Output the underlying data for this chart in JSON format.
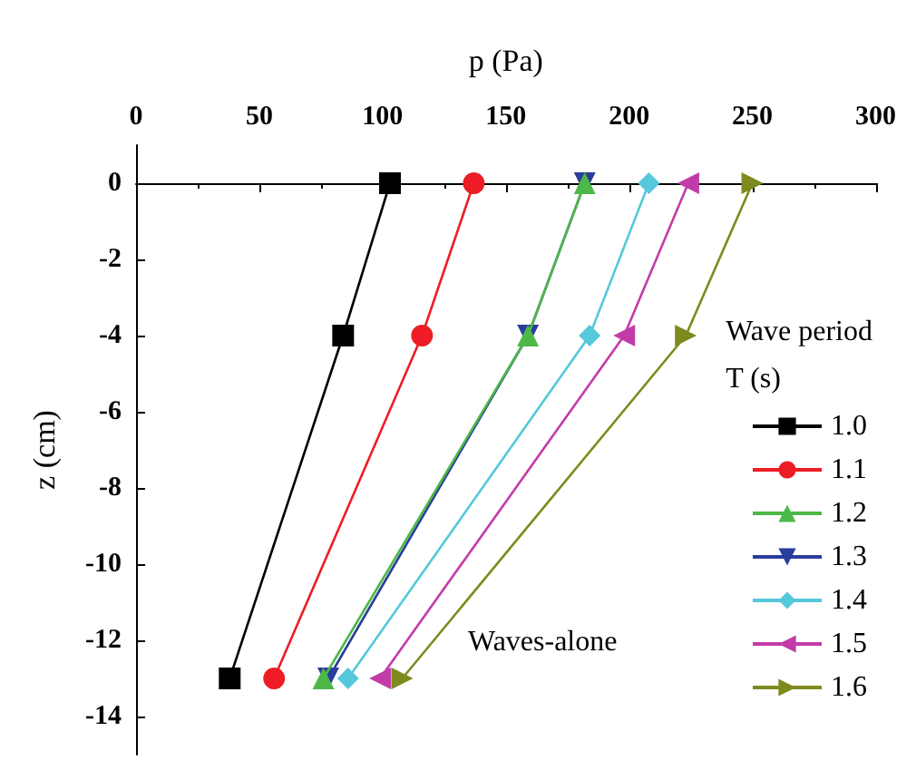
{
  "chart_data": {
    "type": "line",
    "xlabel": "p (Pa)",
    "ylabel": "z (cm)",
    "legend_title": "Wave period\nT (s)",
    "annotations": [
      "Waves-alone"
    ],
    "xlim": [
      0,
      300
    ],
    "xticks": [
      0,
      50,
      100,
      150,
      200,
      250,
      300
    ],
    "ylim": [
      -15,
      1
    ],
    "yticks": [
      -14,
      -12,
      -10,
      -8,
      -6,
      -4,
      -2,
      0
    ],
    "grid": false,
    "legend": "bottom right",
    "line_style": "solid",
    "series": [
      {
        "name": "1.0",
        "color": "#000000",
        "marker": "square",
        "x": [
          103,
          84,
          38
        ],
        "values": [
          0,
          -4,
          -13
        ]
      },
      {
        "name": "1.1",
        "color": "#ee1c24",
        "marker": "circle",
        "x": [
          137,
          116,
          56
        ],
        "values": [
          0,
          -4,
          -13
        ]
      },
      {
        "name": "1.2",
        "color": "#4cb848",
        "marker": "triangle",
        "x": [
          182,
          159,
          76
        ],
        "values": [
          0,
          -4,
          -13
        ]
      },
      {
        "name": "1.3",
        "color": "#2b3d9c",
        "marker": "triangle-down",
        "x": [
          182,
          159,
          78
        ],
        "values": [
          0,
          -4,
          -13
        ]
      },
      {
        "name": "1.4",
        "color": "#55c8dc",
        "marker": "diamond",
        "x": [
          208,
          184,
          86
        ],
        "values": [
          0,
          -4,
          -13
        ]
      },
      {
        "name": "1.5",
        "color": "#c23ca8",
        "marker": "triangle-left",
        "x": [
          224,
          198,
          99
        ],
        "values": [
          0,
          -4,
          -13
        ]
      },
      {
        "name": "1.6",
        "color": "#7f8a1e",
        "marker": "triangle-right",
        "x": [
          250,
          223,
          108
        ],
        "values": [
          0,
          -4,
          -13
        ]
      }
    ]
  }
}
